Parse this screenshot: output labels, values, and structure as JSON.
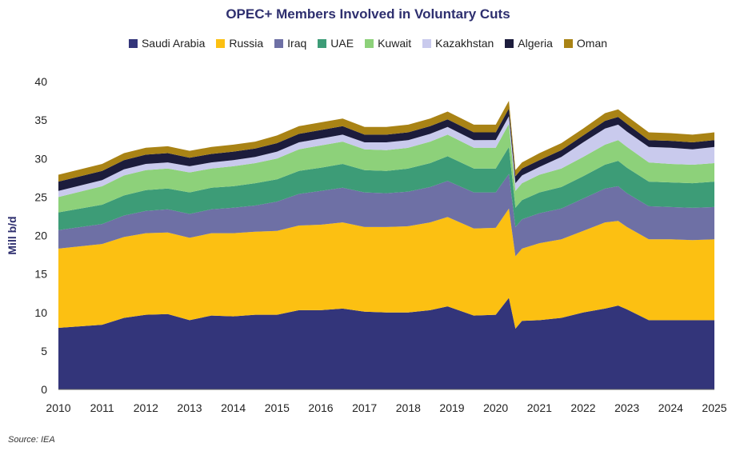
{
  "source": "Source: IEA",
  "chart_data": {
    "type": "area",
    "stacked": true,
    "title": "OPEC+ Members Involved in Voluntary Cuts",
    "ylabel": "Mill b/d",
    "xlabel": "",
    "xlim": [
      2010,
      2025
    ],
    "ylim": [
      0,
      40
    ],
    "x_ticks": [
      2010,
      2011,
      2012,
      2013,
      2014,
      2015,
      2016,
      2017,
      2018,
      2019,
      2020,
      2021,
      2022,
      2023,
      2024,
      2025
    ],
    "y_ticks": [
      0,
      5,
      10,
      15,
      20,
      25,
      30,
      35,
      40
    ],
    "grid": false,
    "legend_position": "top",
    "x": [
      2010.0,
      2011.0,
      2011.5,
      2012.0,
      2012.5,
      2013.0,
      2013.5,
      2014.0,
      2014.5,
      2015.0,
      2015.5,
      2016.0,
      2016.5,
      2017.0,
      2017.5,
      2018.0,
      2018.5,
      2018.9,
      2019.5,
      2020.0,
      2020.3,
      2020.45,
      2020.6,
      2021.0,
      2021.5,
      2022.0,
      2022.5,
      2022.8,
      2023.0,
      2023.5,
      2024.0,
      2024.5,
      2025.0
    ],
    "series": [
      {
        "name": "Saudi Arabia",
        "color": "#33357a",
        "values": [
          8.0,
          8.4,
          9.3,
          9.7,
          9.8,
          9.0,
          9.6,
          9.5,
          9.7,
          9.7,
          10.3,
          10.3,
          10.5,
          10.1,
          10.0,
          10.0,
          10.3,
          10.8,
          9.6,
          9.7,
          11.9,
          7.9,
          8.9,
          9.0,
          9.3,
          10.0,
          10.5,
          10.9,
          10.4,
          9.0,
          9.0,
          9.0,
          9.0
        ]
      },
      {
        "name": "Russia",
        "color": "#fcc012",
        "values": [
          10.3,
          10.5,
          10.5,
          10.6,
          10.6,
          10.7,
          10.7,
          10.8,
          10.8,
          10.9,
          11.0,
          11.1,
          11.2,
          11.0,
          11.1,
          11.2,
          11.4,
          11.6,
          11.3,
          11.3,
          11.6,
          9.4,
          9.4,
          10.0,
          10.2,
          10.6,
          11.2,
          11.0,
          10.7,
          10.5,
          10.5,
          10.4,
          10.5
        ]
      },
      {
        "name": "Iraq",
        "color": "#6e70a5",
        "values": [
          2.4,
          2.6,
          2.8,
          2.9,
          3.0,
          3.1,
          3.1,
          3.3,
          3.4,
          3.8,
          4.1,
          4.4,
          4.5,
          4.5,
          4.4,
          4.5,
          4.6,
          4.7,
          4.7,
          4.6,
          4.5,
          3.8,
          3.8,
          3.9,
          4.0,
          4.2,
          4.4,
          4.5,
          4.4,
          4.3,
          4.2,
          4.2,
          4.2
        ]
      },
      {
        "name": "UAE",
        "color": "#3d9c77",
        "values": [
          2.3,
          2.5,
          2.6,
          2.7,
          2.7,
          2.8,
          2.8,
          2.8,
          2.9,
          2.9,
          3.0,
          3.0,
          3.1,
          2.9,
          2.9,
          3.0,
          3.1,
          3.2,
          3.1,
          3.1,
          3.5,
          2.5,
          2.5,
          2.7,
          2.8,
          2.9,
          3.1,
          3.3,
          3.3,
          3.2,
          3.2,
          3.2,
          3.3
        ]
      },
      {
        "name": "Kuwait",
        "color": "#8dd17a",
        "values": [
          2.0,
          2.4,
          2.6,
          2.6,
          2.6,
          2.6,
          2.5,
          2.6,
          2.6,
          2.7,
          2.8,
          2.9,
          2.9,
          2.7,
          2.7,
          2.7,
          2.8,
          2.8,
          2.7,
          2.7,
          3.0,
          2.2,
          2.2,
          2.3,
          2.4,
          2.5,
          2.6,
          2.7,
          2.7,
          2.5,
          2.4,
          2.4,
          2.4
        ]
      },
      {
        "name": "Kazakhstan",
        "color": "#c9caed",
        "values": [
          0.8,
          0.8,
          0.8,
          0.8,
          0.8,
          0.8,
          0.8,
          0.8,
          0.8,
          0.9,
          0.9,
          0.9,
          0.9,
          0.9,
          1.0,
          1.0,
          1.0,
          1.0,
          1.0,
          1.0,
          1.0,
          1.0,
          1.0,
          1.0,
          1.5,
          1.9,
          2.1,
          2.0,
          2.0,
          2.0,
          2.1,
          2.0,
          2.1
        ]
      },
      {
        "name": "Algeria",
        "color": "#1c1c3c",
        "values": [
          1.2,
          1.2,
          1.2,
          1.2,
          1.2,
          1.1,
          1.1,
          1.1,
          1.1,
          1.1,
          1.1,
          1.1,
          1.1,
          1.0,
          1.0,
          1.0,
          1.0,
          1.0,
          1.0,
          1.0,
          1.0,
          0.9,
          0.9,
          0.9,
          0.9,
          0.9,
          1.0,
          1.0,
          1.0,
          0.9,
          0.9,
          0.9,
          0.9
        ]
      },
      {
        "name": "Oman",
        "color": "#a98315",
        "values": [
          0.9,
          0.9,
          0.9,
          0.9,
          0.9,
          0.9,
          0.9,
          0.9,
          0.9,
          1.0,
          1.0,
          1.0,
          1.0,
          1.0,
          1.0,
          1.0,
          1.0,
          1.0,
          1.0,
          1.0,
          1.0,
          0.8,
          0.8,
          0.9,
          0.9,
          0.9,
          1.0,
          1.0,
          1.0,
          1.0,
          1.0,
          1.0,
          1.0
        ]
      }
    ]
  }
}
